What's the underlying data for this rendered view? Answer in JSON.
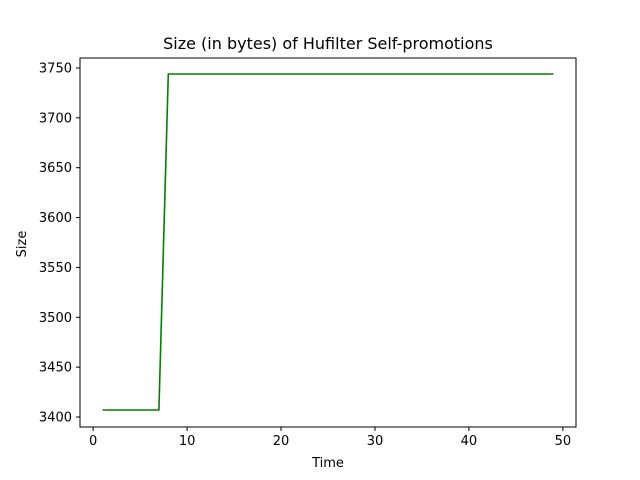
{
  "chart_data": {
    "type": "line",
    "title": "Size (in bytes) of Hufilter Self-promotions",
    "xlabel": "Time",
    "ylabel": "Size",
    "xlim": [
      -1.4,
      51.4
    ],
    "ylim": [
      3390,
      3760
    ],
    "xticks": [
      0,
      10,
      20,
      30,
      40,
      50
    ],
    "yticks": [
      3400,
      3450,
      3500,
      3550,
      3600,
      3650,
      3700,
      3750
    ],
    "grid": false,
    "legend": "none",
    "series": [
      {
        "color": "#008000",
        "x": [
          1,
          7,
          8,
          49
        ],
        "y": [
          3407,
          3407,
          3744,
          3744
        ]
      }
    ]
  }
}
